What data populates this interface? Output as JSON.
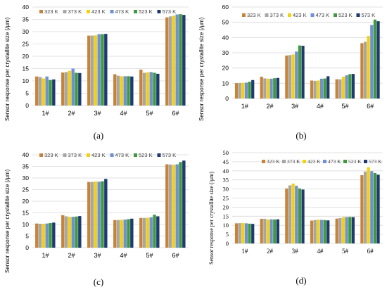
{
  "chart_data": [
    {
      "type": "bar",
      "panel_label": "(a)",
      "ylabel": "Sensor response per crystallite size (/μm)",
      "ylim": [
        0,
        40
      ],
      "yticks": [
        0,
        5,
        10,
        15,
        20,
        25,
        30,
        35,
        40
      ],
      "grid": true,
      "legend_position": "top-left",
      "categories": [
        "1#",
        "2#",
        "3#",
        "4#",
        "5#",
        "6#"
      ],
      "series": [
        {
          "name": "323 K",
          "color": "#c8833a",
          "values": [
            11.8,
            13.4,
            28.4,
            12.7,
            14.6,
            35.8
          ]
        },
        {
          "name": "373 K",
          "color": "#a6a6a6",
          "values": [
            11.6,
            13.6,
            28.4,
            12.1,
            13.3,
            36.2
          ]
        },
        {
          "name": "423 K",
          "color": "#f2d012",
          "values": [
            11.0,
            14.1,
            28.5,
            11.9,
            13.5,
            36.5
          ]
        },
        {
          "name": "473 K",
          "color": "#6f8fd6",
          "values": [
            11.8,
            15.0,
            29.0,
            11.9,
            13.6,
            37.0
          ]
        },
        {
          "name": "523 K",
          "color": "#3f9a3f",
          "values": [
            10.4,
            13.3,
            29.0,
            11.9,
            13.3,
            37.1
          ]
        },
        {
          "name": "573 K",
          "color": "#1f3a6e",
          "values": [
            10.6,
            13.2,
            29.1,
            11.8,
            12.9,
            36.8
          ]
        }
      ]
    },
    {
      "type": "bar",
      "panel_label": "(b)",
      "ylabel": "Sensor response per crystallite size (/μm)",
      "ylim": [
        0,
        60
      ],
      "yticks": [
        0,
        10,
        20,
        30,
        40,
        50,
        60
      ],
      "grid": true,
      "legend_position": "top-left",
      "categories": [
        "1#",
        "2#",
        "3#",
        "4#",
        "5#",
        "6#"
      ],
      "series": [
        {
          "name": "323 K",
          "color": "#c8833a",
          "values": [
            10.1,
            14.3,
            28.2,
            11.8,
            12.6,
            36.3
          ]
        },
        {
          "name": "373 K",
          "color": "#a6a6a6",
          "values": [
            10.2,
            13.2,
            28.5,
            11.6,
            12.6,
            37.2
          ]
        },
        {
          "name": "423 K",
          "color": "#f2d012",
          "values": [
            10.3,
            13.0,
            28.9,
            11.8,
            14.3,
            41.0
          ]
        },
        {
          "name": "473 K",
          "color": "#6f8fd6",
          "values": [
            10.4,
            13.0,
            30.8,
            13.0,
            15.2,
            48.2
          ]
        },
        {
          "name": "523 K",
          "color": "#3f9a3f",
          "values": [
            11.0,
            13.3,
            34.8,
            13.1,
            16.0,
            51.8
          ]
        },
        {
          "name": "573 K",
          "color": "#1f3a6e",
          "values": [
            12.1,
            13.5,
            34.6,
            14.6,
            16.1,
            50.7
          ]
        }
      ]
    },
    {
      "type": "bar",
      "panel_label": "(c)",
      "ylabel": "Sensor response per crystallite size (/μm)",
      "ylim": [
        0,
        40
      ],
      "yticks": [
        0,
        5,
        10,
        15,
        20,
        25,
        30,
        35,
        40
      ],
      "grid": true,
      "legend_position": "top-left",
      "categories": [
        "1#",
        "2#",
        "3#",
        "4#",
        "5#",
        "6#"
      ],
      "series": [
        {
          "name": "323 K",
          "color": "#c8833a",
          "values": [
            10.4,
            14.0,
            28.3,
            11.9,
            12.8,
            35.9
          ]
        },
        {
          "name": "373 K",
          "color": "#a6a6a6",
          "values": [
            10.3,
            13.5,
            28.3,
            11.9,
            12.8,
            35.8
          ]
        },
        {
          "name": "423 K",
          "color": "#f2d012",
          "values": [
            10.3,
            13.3,
            28.5,
            12.0,
            12.9,
            35.7
          ]
        },
        {
          "name": "473 K",
          "color": "#6f8fd6",
          "values": [
            10.4,
            13.3,
            28.4,
            12.1,
            13.1,
            35.9
          ]
        },
        {
          "name": "523 K",
          "color": "#3f9a3f",
          "values": [
            10.6,
            13.4,
            28.6,
            12.3,
            14.2,
            36.9
          ]
        },
        {
          "name": "573 K",
          "color": "#1f3a6e",
          "values": [
            10.8,
            13.6,
            29.6,
            12.5,
            13.5,
            37.5
          ]
        }
      ]
    },
    {
      "type": "bar",
      "panel_label": "(d)",
      "ylabel": "Sensor response per crystallite size (/μm)",
      "ylim": [
        0,
        50
      ],
      "yticks": [
        0,
        5,
        10,
        15,
        20,
        25,
        30,
        35,
        40,
        45,
        50
      ],
      "grid": true,
      "legend_position": "top-right",
      "categories": [
        "1#",
        "2#",
        "3#",
        "4#",
        "5#",
        "6#"
      ],
      "series": [
        {
          "name": "323 K",
          "color": "#c8833a",
          "values": [
            11.1,
            13.6,
            30.3,
            12.6,
            13.7,
            37.6
          ]
        },
        {
          "name": "373 K",
          "color": "#a6a6a6",
          "values": [
            11.2,
            13.6,
            32.0,
            12.9,
            14.0,
            39.6
          ]
        },
        {
          "name": "423 K",
          "color": "#f2d012",
          "values": [
            11.3,
            13.2,
            33.0,
            13.1,
            14.5,
            42.0
          ]
        },
        {
          "name": "473 K",
          "color": "#6f8fd6",
          "values": [
            11.1,
            13.3,
            31.8,
            13.0,
            14.5,
            39.8
          ]
        },
        {
          "name": "523 K",
          "color": "#3f9a3f",
          "values": [
            10.9,
            13.2,
            30.3,
            12.9,
            14.6,
            38.8
          ]
        },
        {
          "name": "573 K",
          "color": "#1f3a6e",
          "values": [
            10.8,
            13.3,
            29.7,
            12.7,
            14.5,
            37.9
          ]
        }
      ]
    }
  ]
}
